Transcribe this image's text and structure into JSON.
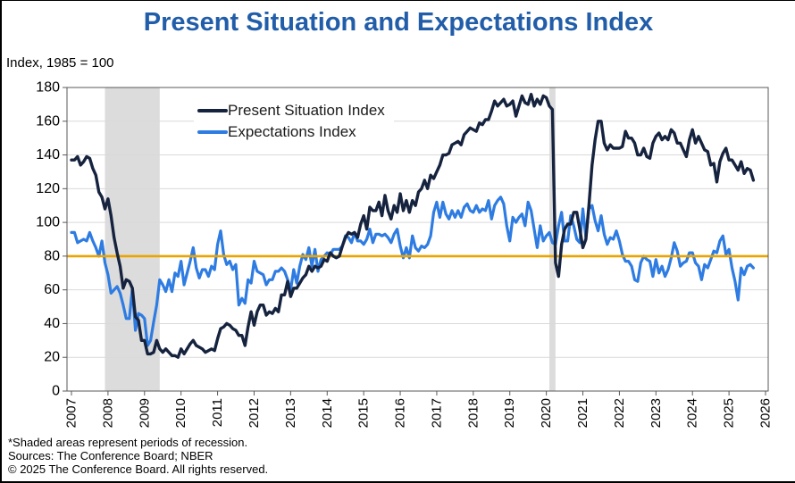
{
  "header": {
    "title": "Present Situation and Expectations Index",
    "unit_label": "Index, 1985 = 100"
  },
  "footer": {
    "note": "*Shaded areas represent periods of recession.",
    "sources": "Sources:  The Conference Board;  NBER",
    "copyright": "© 2025 The Conference Board. All rights reserved."
  },
  "colors": {
    "title": "#215da8",
    "present_situation": "#16233f",
    "expectations": "#2e7ce2",
    "reference_line": "#eaa400",
    "recession_band": "#dcdcdc",
    "gridline": "#d9d9d9",
    "frame": "#595959"
  },
  "chart_data": {
    "type": "line",
    "title": "Present Situation and Expectations Index",
    "ylabel": "Index, 1985 = 100",
    "ylim": [
      0,
      180
    ],
    "y_ticks": [
      0,
      20,
      40,
      60,
      80,
      100,
      120,
      140,
      160,
      180
    ],
    "x_ticks": [
      2007,
      2008,
      2009,
      2010,
      2011,
      2012,
      2013,
      2014,
      2015,
      2016,
      2017,
      2018,
      2019,
      2020,
      2021,
      2022,
      2023,
      2024,
      2025,
      2026
    ],
    "frequency": "monthly",
    "x_start": "2007-01",
    "grid": "horizontal",
    "legend_position": "inside-top-left",
    "reference_line": {
      "value": 80
    },
    "recessions": [
      {
        "start": "2007-12",
        "end": "2009-06"
      },
      {
        "start": "2020-02",
        "end": "2020-04"
      }
    ],
    "series": [
      {
        "name": "Present Situation Index",
        "values": [
          137,
          137,
          139,
          134,
          136,
          139,
          138,
          132,
          128,
          118,
          115,
          108,
          114,
          104,
          91,
          82,
          74,
          61,
          66,
          65,
          61,
          44,
          42,
          30,
          30,
          22,
          22,
          23,
          30,
          25,
          23,
          25,
          23,
          21,
          21,
          20,
          25,
          22,
          25,
          28,
          30,
          27,
          26,
          25,
          23,
          24,
          25,
          24,
          31,
          37,
          38,
          40,
          39,
          37,
          36,
          33,
          33,
          27,
          38,
          47,
          39,
          47,
          51,
          51,
          45,
          47,
          46,
          49,
          47,
          57,
          57,
          65,
          56,
          61,
          61,
          64,
          67,
          69,
          74,
          71,
          74,
          73,
          74,
          78,
          77,
          82,
          80,
          79,
          80,
          86,
          91,
          94,
          93,
          94,
          91,
          99,
          104,
          96,
          109,
          107,
          107,
          112,
          104,
          116,
          107,
          102,
          110,
          106,
          117,
          107,
          113,
          106,
          113,
          110,
          118,
          120,
          125,
          120,
          128,
          126,
          130,
          134,
          140,
          140,
          141,
          146,
          147,
          148,
          146,
          152,
          154,
          156,
          155,
          154,
          159,
          158,
          161,
          161,
          166,
          172,
          169,
          171,
          173,
          169,
          170,
          172,
          163,
          169,
          175,
          171,
          170,
          176,
          169,
          173,
          170,
          175,
          174,
          169,
          167,
          76,
          68,
          87,
          96,
          99,
          99,
          106,
          106,
          96,
          85,
          90,
          110,
          134,
          149,
          160,
          160,
          147,
          143,
          146,
          144,
          144,
          144,
          145,
          154,
          150,
          150,
          147,
          140,
          140,
          144,
          139,
          138,
          147,
          151,
          153,
          149,
          151,
          149,
          155,
          153,
          147,
          147,
          143,
          139,
          149,
          155,
          147,
          151,
          147,
          143,
          142,
          134,
          135,
          124,
          136,
          141,
          144,
          137,
          137,
          134,
          131,
          136,
          129,
          132,
          131,
          125
        ]
      },
      {
        "name": "Expectations Index",
        "values": [
          94,
          94,
          88,
          89,
          90,
          89,
          94,
          89,
          85,
          80,
          89,
          76,
          69,
          58,
          60,
          62,
          58,
          51,
          43,
          43,
          61,
          36,
          46,
          45,
          43,
          27,
          30,
          41,
          51,
          66,
          63,
          59,
          66,
          59,
          70,
          68,
          77,
          63,
          70,
          77,
          85,
          73,
          67,
          72,
          72,
          68,
          74,
          72,
          87,
          95,
          81,
          75,
          77,
          72,
          75,
          51,
          55,
          52,
          66,
          64,
          77,
          71,
          70,
          69,
          63,
          66,
          66,
          71,
          71,
          73,
          71,
          66,
          60,
          72,
          64,
          74,
          81,
          78,
          85,
          74,
          84,
          71,
          78,
          80,
          82,
          81,
          84,
          84,
          84,
          86,
          92,
          91,
          88,
          94,
          89,
          89,
          87,
          90,
          96,
          88,
          93,
          93,
          92,
          93,
          91,
          88,
          93,
          96,
          86,
          79,
          85,
          79,
          92,
          85,
          83,
          86,
          85,
          87,
          92,
          106,
          112,
          103,
          112,
          105,
          102,
          107,
          103,
          107,
          103,
          109,
          111,
          107,
          106,
          110,
          106,
          108,
          107,
          113,
          102,
          110,
          113,
          115,
          111,
          98,
          89,
          103,
          100,
          103,
          105,
          98,
          112,
          107,
          96,
          85,
          98,
          89,
          92,
          94,
          88,
          87,
          98,
          106,
          89,
          89,
          104,
          98,
          90,
          88,
          108,
          91,
          108,
          110,
          101,
          95,
          104,
          93,
          87,
          91,
          90,
          95,
          89,
          81,
          77,
          77,
          74,
          66,
          65,
          76,
          80,
          78,
          77,
          68,
          78,
          70,
          74,
          68,
          72,
          79,
          88,
          83,
          74,
          76,
          77,
          82,
          82,
          76,
          74,
          66,
          75,
          73,
          78,
          83,
          82,
          89,
          92,
          81,
          84,
          73,
          65,
          54,
          73,
          69,
          74,
          75,
          73
        ]
      }
    ]
  }
}
